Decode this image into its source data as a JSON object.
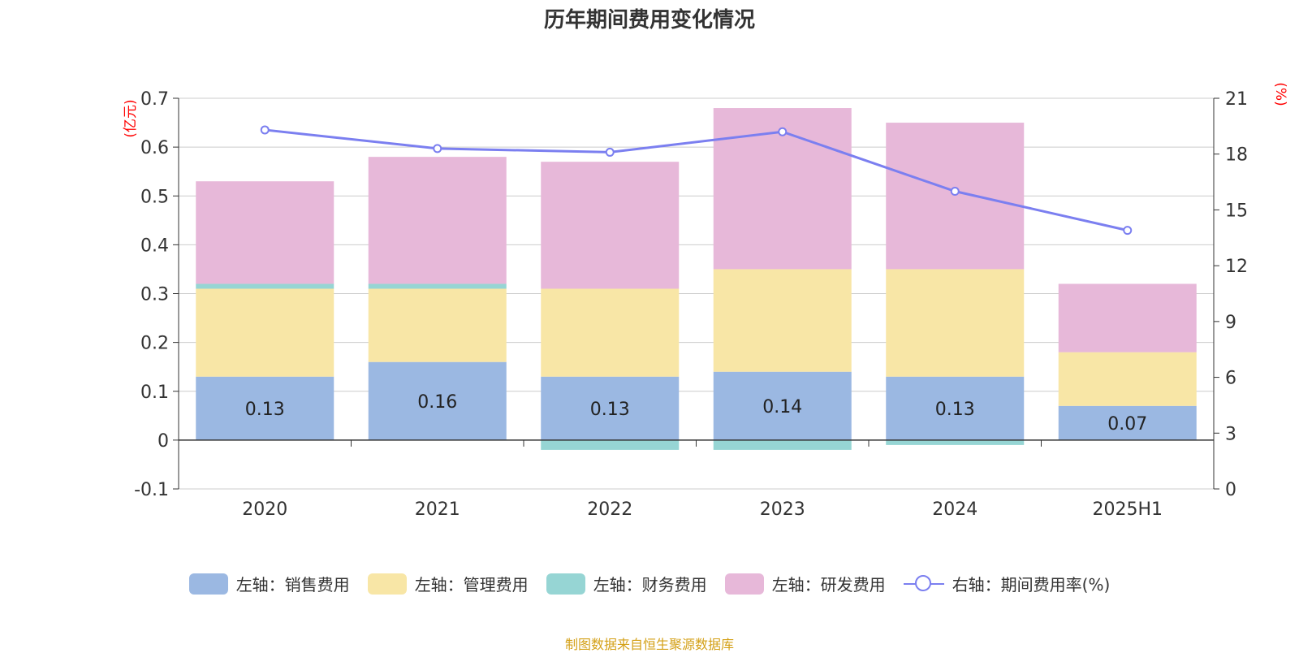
{
  "title": "历年期间费用变化情况",
  "source": "制图数据来自恒生聚源数据库",
  "chart_data": {
    "type": "bar",
    "stacked": true,
    "title": "历年期间费用变化情况",
    "categories": [
      "2020",
      "2021",
      "2022",
      "2023",
      "2024",
      "2025H1"
    ],
    "left_axis": {
      "unit_label": "(亿元)",
      "ylim": [
        -0.1,
        0.7
      ],
      "ticks": [
        "0.7",
        "0.6",
        "0.5",
        "0.4",
        "0.3",
        "0.2",
        "0.1",
        "0",
        "-0.1"
      ],
      "tick_values": [
        0.7,
        0.6,
        0.5,
        0.4,
        0.3,
        0.2,
        0.1,
        0,
        -0.1
      ]
    },
    "right_axis": {
      "unit_label": "(%)",
      "ylim": [
        0,
        21
      ],
      "ticks": [
        "21",
        "18",
        "15",
        "12",
        "9",
        "6",
        "3",
        "0"
      ],
      "tick_values": [
        21,
        18,
        15,
        12,
        9,
        6,
        3,
        0
      ]
    },
    "grid": true,
    "legend_position": "bottom",
    "series": [
      {
        "name": "左轴：销售费用",
        "axis": "left",
        "color": "#9bb8e2",
        "values": [
          0.13,
          0.16,
          0.13,
          0.14,
          0.13,
          0.07
        ],
        "labels": [
          "0.13",
          "0.16",
          "0.13",
          "0.14",
          "0.13",
          "0.07"
        ]
      },
      {
        "name": "左轴：管理费用",
        "axis": "left",
        "color": "#f8e6a6",
        "values": [
          0.18,
          0.15,
          0.18,
          0.21,
          0.22,
          0.11
        ]
      },
      {
        "name": "左轴：财务费用",
        "axis": "left",
        "color": "#96d5d4",
        "values": [
          0.01,
          0.01,
          -0.02,
          -0.02,
          -0.01,
          0.0
        ]
      },
      {
        "name": "左轴：研发费用",
        "axis": "left",
        "color": "#e7b8d9",
        "values": [
          0.21,
          0.26,
          0.26,
          0.33,
          0.3,
          0.14
        ]
      },
      {
        "name": "右轴：期间费用率(%)",
        "axis": "right",
        "type": "line",
        "color": "#7b7ff0",
        "values": [
          19.3,
          18.3,
          18.1,
          19.2,
          16.0,
          13.9
        ]
      }
    ]
  }
}
